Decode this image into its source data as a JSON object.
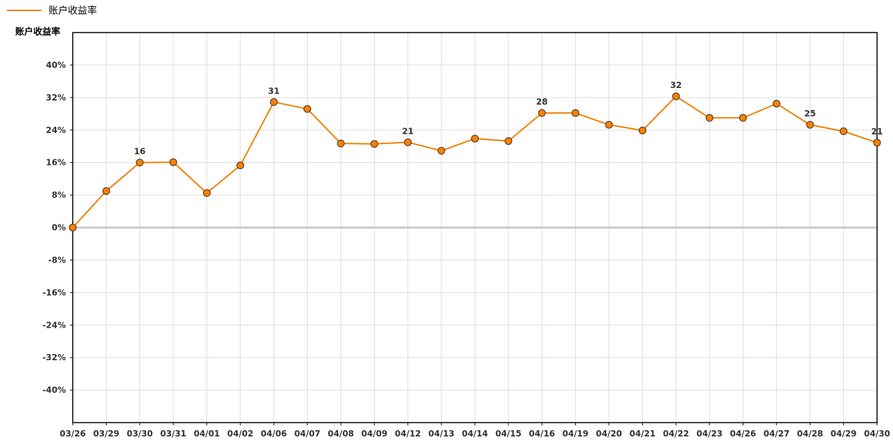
{
  "chart_data": {
    "type": "line",
    "legend": {
      "placement": "top-left",
      "entries": [
        "账户收益率"
      ]
    },
    "ylabel": "账户收益率",
    "xlabel": "",
    "title": "",
    "ylim": [
      -48,
      48
    ],
    "yticks": [
      40,
      32,
      24,
      16,
      8,
      0,
      -8,
      -16,
      -24,
      -32,
      -40
    ],
    "ytick_labels": [
      "40%",
      "32%",
      "24%",
      "16%",
      "8%",
      "0%",
      "-8%",
      "-16%",
      "-24%",
      "-32%",
      "-40%"
    ],
    "grid": true,
    "categories": [
      "03/26",
      "03/29",
      "03/30",
      "03/31",
      "04/01",
      "04/02",
      "04/06",
      "04/07",
      "04/08",
      "04/09",
      "04/12",
      "04/13",
      "04/14",
      "04/15",
      "04/16",
      "04/19",
      "04/20",
      "04/21",
      "04/22",
      "04/23",
      "04/26",
      "04/27",
      "04/28",
      "04/29",
      "04/30"
    ],
    "series": [
      {
        "name": "账户收益率",
        "color": "#f08000",
        "marker_color": "#ff8000",
        "values": [
          0,
          9,
          16,
          16.1,
          8.5,
          15.3,
          30.9,
          29.2,
          20.7,
          20.6,
          21,
          18.9,
          21.9,
          21.3,
          28.2,
          28.2,
          25.3,
          23.9,
          32.3,
          27,
          27,
          30.5,
          25.3,
          23.7,
          20.9
        ]
      }
    ],
    "data_labels": [
      {
        "index": 2,
        "text": "16"
      },
      {
        "index": 6,
        "text": "31"
      },
      {
        "index": 10,
        "text": "21"
      },
      {
        "index": 14,
        "text": "28"
      },
      {
        "index": 18,
        "text": "32"
      },
      {
        "index": 22,
        "text": "25"
      },
      {
        "index": 24,
        "text": "21"
      }
    ]
  }
}
